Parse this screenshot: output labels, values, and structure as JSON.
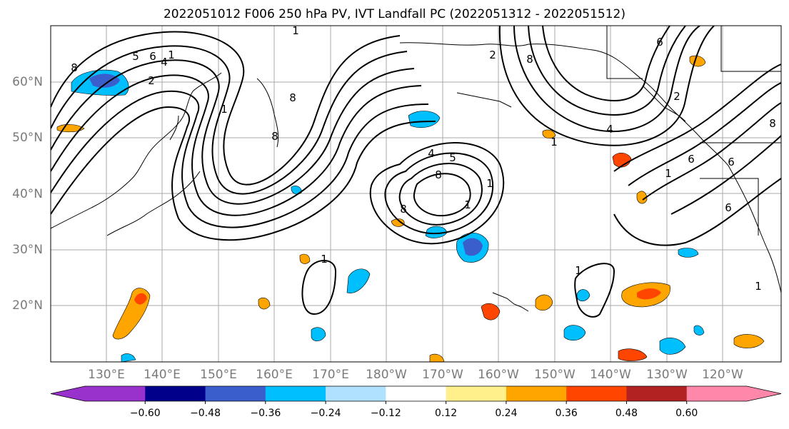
{
  "title": "2022051012 F006 250 hPa PV, IVT Landfall PC (2022051312 - 2022051512)",
  "map": {
    "lat_labels": [
      "20°N",
      "30°N",
      "40°N",
      "50°N",
      "60°N"
    ],
    "lon_labels": [
      "130°E",
      "140°E",
      "150°E",
      "160°E",
      "170°E",
      "180°W",
      "170°W",
      "160°W",
      "150°W",
      "140°W",
      "130°W",
      "120°W"
    ],
    "contour_labels": [
      "1",
      "2",
      "4",
      "5",
      "6",
      "8"
    ]
  },
  "colorbar": {
    "ticks": [
      "−0.60",
      "−0.48",
      "−0.36",
      "−0.24",
      "−0.12",
      "0.12",
      "0.24",
      "0.36",
      "0.48",
      "0.60"
    ],
    "colors": [
      "#9932cc",
      "#00008b",
      "#3a5fcd",
      "#00bfff",
      "#b0e2ff",
      "#ffffff",
      "#fff08c",
      "#ffa500",
      "#ff4500",
      "#b22222",
      "#ff88aa"
    ]
  }
}
